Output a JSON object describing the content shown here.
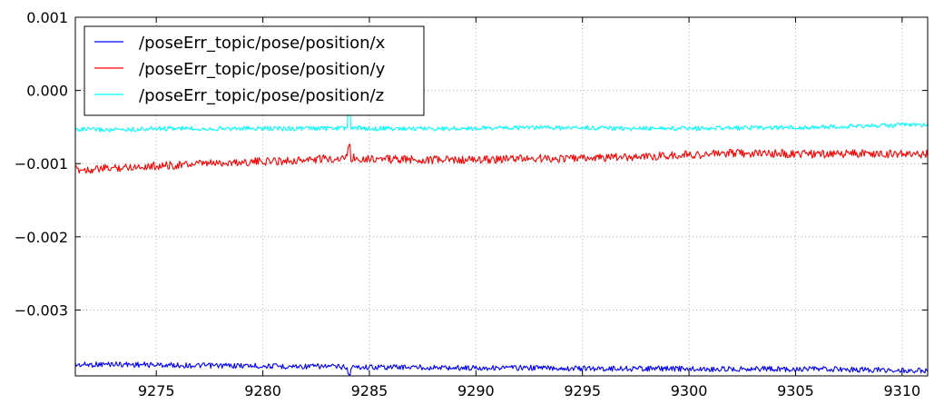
{
  "chart_data": {
    "type": "line",
    "title": "",
    "xlabel": "",
    "ylabel": "",
    "xlim": [
      9271.2,
      9311.2
    ],
    "ylim": [
      -0.0039,
      0.001
    ],
    "grid": true,
    "legend_position": "top-left",
    "x_ticks": [
      {
        "value": 9275,
        "label": "9275"
      },
      {
        "value": 9280,
        "label": "9280"
      },
      {
        "value": 9285,
        "label": "9285"
      },
      {
        "value": 9290,
        "label": "9290"
      },
      {
        "value": 9295,
        "label": "9295"
      },
      {
        "value": 9300,
        "label": "9300"
      },
      {
        "value": 9305,
        "label": "9305"
      },
      {
        "value": 9310,
        "label": "9310"
      }
    ],
    "y_ticks": [
      {
        "value": 0.001,
        "label": "0.001"
      },
      {
        "value": 0.0,
        "label": "0.000"
      },
      {
        "value": -0.001,
        "label": "−0.001"
      },
      {
        "value": -0.002,
        "label": "−0.002"
      },
      {
        "value": -0.003,
        "label": "−0.003"
      }
    ],
    "series": [
      {
        "name": "/poseErr_topic/pose/position/x",
        "color": "#0000ff",
        "x": [
          9271.2,
          9273,
          9275,
          9277,
          9279,
          9281,
          9283,
          9284,
          9285,
          9287,
          9289,
          9291,
          9293,
          9295,
          9297,
          9299,
          9301,
          9303,
          9305,
          9307,
          9309,
          9311.2
        ],
        "y": [
          -0.00375,
          -0.00374,
          -0.00375,
          -0.00376,
          -0.00376,
          -0.00377,
          -0.00377,
          -0.00378,
          -0.00378,
          -0.00378,
          -0.00379,
          -0.00379,
          -0.00379,
          -0.0038,
          -0.0038,
          -0.0038,
          -0.00381,
          -0.0038,
          -0.00381,
          -0.00381,
          -0.00382,
          -0.00383
        ]
      },
      {
        "name": "/poseErr_topic/pose/position/y",
        "color": "#ff0000",
        "x": [
          9271.2,
          9272,
          9274,
          9276,
          9278,
          9280,
          9282,
          9284,
          9286,
          9288,
          9290,
          9292,
          9294,
          9296,
          9298,
          9300,
          9302,
          9304,
          9306,
          9308,
          9310,
          9311.2
        ],
        "y": [
          -0.00108,
          -0.00108,
          -0.00104,
          -0.00102,
          -0.00099,
          -0.00097,
          -0.00095,
          -0.00092,
          -0.00094,
          -0.00095,
          -0.00095,
          -0.00093,
          -0.00093,
          -0.00092,
          -0.0009,
          -0.00088,
          -0.00086,
          -0.00086,
          -0.00087,
          -0.00086,
          -0.00087,
          -0.00087
        ]
      },
      {
        "name": "/poseErr_topic/pose/position/z",
        "color": "#00ffff",
        "x": [
          9271.2,
          9273,
          9275,
          9277,
          9279,
          9281,
          9283,
          9284,
          9285,
          9287,
          9289,
          9291,
          9293,
          9295,
          9297,
          9299,
          9301,
          9303,
          9305,
          9307,
          9309,
          9311.2
        ],
        "y": [
          -0.00053,
          -0.00054,
          -0.00052,
          -0.00052,
          -0.00052,
          -0.00052,
          -0.00052,
          -0.00051,
          -0.00052,
          -0.00052,
          -0.00052,
          -0.00051,
          -0.00051,
          -0.00051,
          -0.00052,
          -0.00052,
          -0.00052,
          -0.00051,
          -0.00051,
          -0.00049,
          -0.00048,
          -0.00047
        ]
      }
    ]
  }
}
